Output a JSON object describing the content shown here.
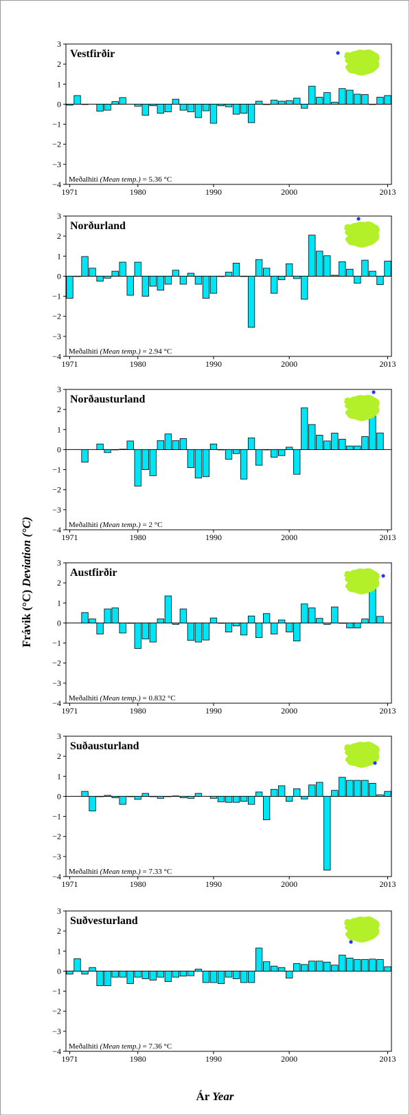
{
  "chart_data": {
    "type": "bar",
    "ylabel": "Frávik (°C)",
    "ylabel_en": "Deviation (°C)",
    "xlabel": "Ár",
    "xlabel_en": "Year",
    "mean_label": "Meðalhiti",
    "mean_label_en": "(Mean temp.)",
    "x_ticks": [
      1971,
      1980,
      1990,
      2000,
      2013
    ],
    "y_ticks": [
      3,
      2,
      1,
      0,
      -1,
      -2,
      -3,
      -4
    ],
    "y_tick_labels": [
      "3",
      "2",
      "1",
      "0",
      "−1",
      "−2",
      "−3",
      "−4"
    ],
    "ylim": [
      -4,
      3
    ],
    "xlim": [
      1971,
      2013
    ],
    "colors": {
      "bar": "#00e5f5",
      "bar_edge": "#000000",
      "map": "#b4f02a",
      "dot": "#1a3cff"
    },
    "panels": [
      {
        "region": "Vestfirðir",
        "mean": "5.36",
        "unit": "°C",
        "values": [
          -0.05,
          0.43,
          0,
          null,
          -0.35,
          -0.3,
          0.13,
          0.33,
          null,
          -0.1,
          -0.55,
          -0.08,
          -0.45,
          -0.38,
          0.25,
          -0.3,
          -0.38,
          -0.67,
          -0.33,
          -0.95,
          -0.08,
          -0.13,
          -0.5,
          -0.45,
          -0.92,
          0.15,
          0,
          0.2,
          0.15,
          0.18,
          0.3,
          -0.2,
          0.9,
          0.35,
          0.58,
          0.1,
          0.78,
          0.7,
          0.5,
          0.48,
          0,
          0.35,
          0.43
        ],
        "dot": "northwest"
      },
      {
        "region": "Norðurland",
        "mean": "2.94",
        "unit": "°C",
        "values": [
          -1.1,
          0,
          0.98,
          0.4,
          -0.25,
          -0.1,
          0.25,
          0.7,
          -0.95,
          0.7,
          -1,
          -0.5,
          -0.7,
          -0.4,
          0.3,
          -0.4,
          0.15,
          -0.4,
          -1.1,
          -0.85,
          0,
          0.2,
          0.65,
          0,
          -2.55,
          0.83,
          0.4,
          -0.85,
          -0.18,
          0.62,
          -0.12,
          -1.15,
          2.05,
          1.25,
          1.02,
          0.05,
          0.72,
          0.35,
          -0.35,
          0.8,
          0.25,
          -0.42,
          0.75
        ],
        "dot": "north"
      },
      {
        "region": "Norðausturland",
        "mean": "2",
        "unit": "°C",
        "values": [
          null,
          null,
          -0.63,
          null,
          0.28,
          -0.15,
          0,
          0.02,
          0.43,
          -1.82,
          -1,
          -1.3,
          0.45,
          0.78,
          0.45,
          0.55,
          -0.9,
          -1.42,
          -1.35,
          0.28,
          0,
          -0.48,
          -0.2,
          -1.47,
          0.58,
          -0.78,
          0,
          -0.38,
          -0.3,
          0.12,
          -1.23,
          2.08,
          1.25,
          0.72,
          0.43,
          0.82,
          0.52,
          0.18,
          0.18,
          0.65,
          1.68,
          0.83
        ],
        "dot": "northeast"
      },
      {
        "region": "Austfirðir",
        "mean": "0.832",
        "unit": "°C",
        "values": [
          null,
          null,
          0.52,
          0.2,
          -0.55,
          0.7,
          0.75,
          -0.5,
          0,
          -1.27,
          -0.8,
          -0.95,
          0.2,
          1.35,
          -0.07,
          0.7,
          -0.87,
          -0.95,
          -0.85,
          0.25,
          0,
          -0.45,
          -0.15,
          -0.6,
          0.35,
          -0.73,
          0.47,
          -0.55,
          0.15,
          -0.45,
          -0.9,
          0.95,
          0.75,
          0.23,
          -0.07,
          0.8,
          0,
          -0.25,
          -0.25,
          0.2,
          1.7,
          0.33
        ],
        "dot": "east"
      },
      {
        "region": "Suðausturland",
        "mean": "7.33",
        "unit": "°C",
        "values": [
          null,
          null,
          0.25,
          -0.73,
          0,
          0.05,
          -0.07,
          -0.4,
          0,
          -0.15,
          0.15,
          0,
          -0.1,
          0,
          0.02,
          -0.07,
          -0.1,
          0.15,
          null,
          -0.1,
          -0.27,
          -0.3,
          -0.3,
          -0.25,
          -0.4,
          0.22,
          -1.17,
          0.35,
          0.53,
          -0.25,
          0.38,
          -0.13,
          0.57,
          0.7,
          -3.68,
          0.3,
          0.95,
          0.8,
          0.8,
          0.8,
          0.65,
          0.08,
          0.25
        ],
        "dot": "southeast"
      },
      {
        "region": "Suðvesturland",
        "mean": "7.36",
        "unit": "°C",
        "values": [
          -0.15,
          0.62,
          -0.15,
          0.18,
          -0.73,
          -0.73,
          -0.3,
          -0.3,
          -0.62,
          -0.3,
          -0.38,
          -0.45,
          -0.3,
          -0.52,
          -0.3,
          -0.25,
          -0.23,
          0.1,
          -0.57,
          -0.57,
          -0.62,
          -0.3,
          -0.38,
          -0.57,
          -0.57,
          1.15,
          0.47,
          0.25,
          0.18,
          -0.35,
          0.38,
          0.33,
          0.5,
          0.5,
          0.45,
          0.3,
          0.8,
          0.65,
          0.58,
          0.58,
          0.6,
          0.58,
          0.22
        ],
        "dot": "southwest"
      }
    ]
  }
}
